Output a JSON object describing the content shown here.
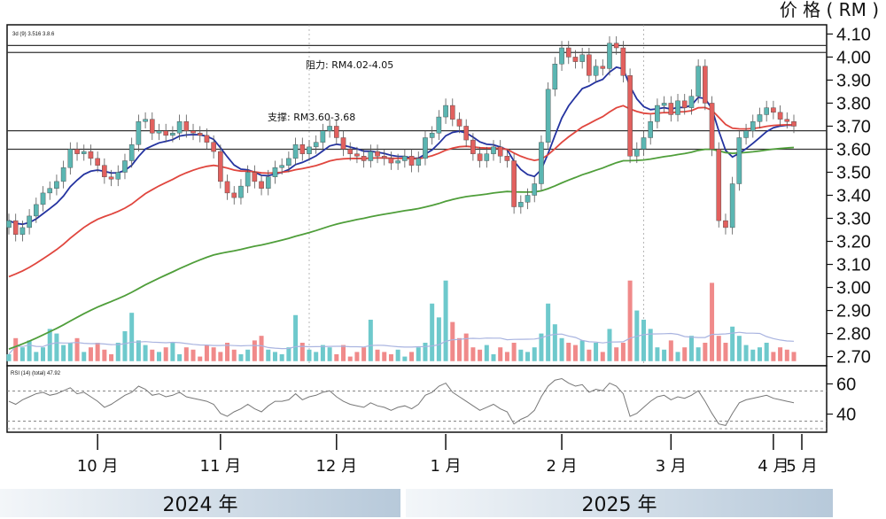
{
  "header": {
    "price_label": "价 格 ( RM )"
  },
  "legend": {
    "main": "3d (9)  3.516  3.8.6",
    "rsi": "RSI (14) (total) 47.92"
  },
  "annotations": {
    "resistance": "阻力: RM4.02-4.05",
    "support": "支撑: RM3.60-3.68"
  },
  "colors": {
    "up": "#5bb6b2",
    "down": "#e2605e",
    "ma_short": "#2433a0",
    "ma_mid": "#e0463e",
    "ma_long": "#4f9e3a",
    "vol_up": "#6ec9cc",
    "vol_down": "#f08a8a"
  },
  "chart_data": {
    "type": "candlestick",
    "ylabel": "价 格 ( RM )",
    "y_ticks": [
      "4.10",
      "4.00",
      "3.90",
      "3.80",
      "3.70",
      "3.60",
      "3.50",
      "3.40",
      "3.30",
      "3.20",
      "3.10",
      "3.00",
      "2.90",
      "2.80",
      "2.70"
    ],
    "ylim": [
      2.66,
      4.14
    ],
    "month_labels": [
      "10 月",
      "11 月",
      "12 月",
      "1 月",
      "2 月",
      "3 月",
      "4 月",
      "5 月"
    ],
    "year_labels": [
      "2024 年",
      "2025 年"
    ],
    "rsi_ticks": [
      "60",
      "40"
    ],
    "horizontal_lines": [
      {
        "name": "resistance",
        "values": [
          4.02,
          4.05
        ]
      },
      {
        "name": "support",
        "values": [
          3.6,
          3.68
        ]
      }
    ],
    "closes": [
      3.29,
      3.23,
      3.26,
      3.31,
      3.36,
      3.41,
      3.43,
      3.46,
      3.52,
      3.6,
      3.58,
      3.59,
      3.56,
      3.53,
      3.48,
      3.47,
      3.5,
      3.55,
      3.62,
      3.72,
      3.73,
      3.67,
      3.68,
      3.66,
      3.67,
      3.72,
      3.68,
      3.67,
      3.66,
      3.63,
      3.59,
      3.46,
      3.41,
      3.39,
      3.44,
      3.5,
      3.46,
      3.43,
      3.48,
      3.52,
      3.53,
      3.56,
      3.62,
      3.58,
      3.61,
      3.63,
      3.68,
      3.7,
      3.65,
      3.6,
      3.58,
      3.57,
      3.55,
      3.59,
      3.57,
      3.56,
      3.54,
      3.55,
      3.57,
      3.53,
      3.56,
      3.65,
      3.67,
      3.74,
      3.79,
      3.73,
      3.7,
      3.64,
      3.58,
      3.55,
      3.58,
      3.61,
      3.57,
      3.55,
      3.35,
      3.37,
      3.4,
      3.45,
      3.63,
      3.86,
      3.97,
      4.04,
      4.0,
      3.98,
      4.01,
      3.92,
      3.96,
      3.95,
      4.06,
      4.04,
      3.92,
      3.57,
      3.6,
      3.65,
      3.72,
      3.79,
      3.8,
      3.75,
      3.81,
      3.78,
      3.83,
      3.96,
      3.8,
      3.6,
      3.29,
      3.26,
      3.45,
      3.65,
      3.68,
      3.72,
      3.75,
      3.78,
      3.76,
      3.73,
      3.72,
      3.7
    ],
    "volumes": [
      2.71,
      2.78,
      2.74,
      2.77,
      2.72,
      2.74,
      2.82,
      2.8,
      2.75,
      2.76,
      2.78,
      2.72,
      2.74,
      2.76,
      2.73,
      2.71,
      2.76,
      2.81,
      2.89,
      2.77,
      2.75,
      2.73,
      2.72,
      2.74,
      2.76,
      2.71,
      2.74,
      2.73,
      2.7,
      2.75,
      2.74,
      2.72,
      2.76,
      2.73,
      2.71,
      2.73,
      2.77,
      2.79,
      2.73,
      2.72,
      2.71,
      2.74,
      2.88,
      2.76,
      2.73,
      2.72,
      2.75,
      2.74,
      2.71,
      2.75,
      2.7,
      2.72,
      2.74,
      2.86,
      2.73,
      2.72,
      2.71,
      2.73,
      2.7,
      2.72,
      2.74,
      2.76,
      2.93,
      2.87,
      3.03,
      2.85,
      2.78,
      2.8,
      2.74,
      2.73,
      2.75,
      2.71,
      2.74,
      2.72,
      2.76,
      2.73,
      2.72,
      2.74,
      2.8,
      2.93,
      2.84,
      2.78,
      2.76,
      2.75,
      2.77,
      2.73,
      2.76,
      2.72,
      2.82,
      2.74,
      2.76,
      3.03,
      2.9,
      2.86,
      2.82,
      2.74,
      2.73,
      2.77,
      2.72,
      2.74,
      2.79,
      2.74,
      2.76,
      3.02,
      2.79,
      2.76,
      2.83,
      2.79,
      2.75,
      2.73,
      2.74,
      2.76,
      2.72,
      2.74,
      2.73,
      2.72
    ],
    "rsi": [
      52,
      50,
      53,
      55,
      57,
      58,
      56,
      57,
      59,
      61,
      57,
      58,
      55,
      52,
      48,
      50,
      53,
      56,
      58,
      62,
      60,
      56,
      57,
      55,
      56,
      58,
      55,
      54,
      53,
      52,
      50,
      44,
      42,
      45,
      47,
      50,
      47,
      45,
      49,
      52,
      52,
      53,
      57,
      53,
      55,
      56,
      58,
      59,
      55,
      52,
      50,
      49,
      48,
      51,
      49,
      48,
      46,
      48,
      49,
      47,
      50,
      56,
      58,
      62,
      64,
      58,
      55,
      52,
      49,
      46,
      48,
      50,
      47,
      45,
      37,
      40,
      42,
      46,
      55,
      62,
      66,
      67,
      64,
      62,
      63,
      58,
      60,
      59,
      64,
      62,
      57,
      42,
      44,
      48,
      52,
      55,
      56,
      53,
      55,
      54,
      56,
      59,
      52,
      44,
      37,
      36,
      44,
      51,
      53,
      54,
      55,
      56,
      54,
      53,
      52,
      51
    ]
  }
}
